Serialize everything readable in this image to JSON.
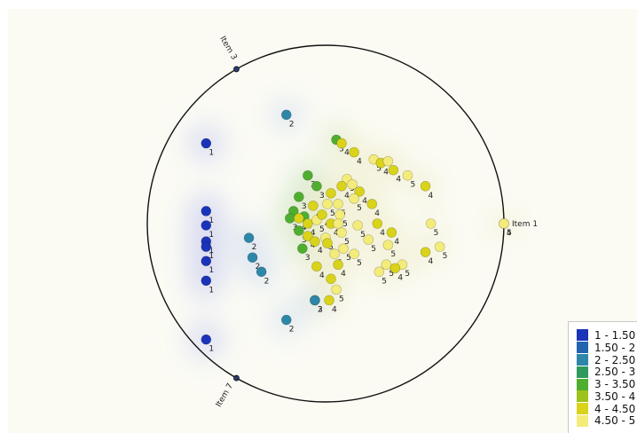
{
  "chart_data": {
    "type": "scatter",
    "title": "",
    "anchors": [
      {
        "name": "Item 1",
        "angle_deg": 0
      },
      {
        "name": "Item 3",
        "angle_deg": 120
      },
      {
        "name": "Item 7",
        "angle_deg": 240
      }
    ],
    "legend": {
      "placement": "bottom-right",
      "bins": [
        {
          "label": "1 - 1.50",
          "color": "#1a33b8"
        },
        {
          "label": "1.50 - 2",
          "color": "#2363b0"
        },
        {
          "label": "2 - 2.50",
          "color": "#2e86a8"
        },
        {
          "label": "2.50 - 3",
          "color": "#2f9a5c"
        },
        {
          "label": "3 - 3.50",
          "color": "#4fae2f"
        },
        {
          "label": "3.50 - 4",
          "color": "#9fc21a"
        },
        {
          "label": "4 - 4.50",
          "color": "#d9d31a"
        },
        {
          "label": "4.50 - 5",
          "color": "#f4ec7a"
        }
      ]
    },
    "points": [
      {
        "x": -0.67,
        "y": 0.45,
        "label": "1"
      },
      {
        "x": -0.67,
        "y": 0.07,
        "label": "1"
      },
      {
        "x": -0.67,
        "y": -0.01,
        "label": "1"
      },
      {
        "x": -0.67,
        "y": -0.1,
        "label": "1"
      },
      {
        "x": -0.67,
        "y": -0.13,
        "label": "1"
      },
      {
        "x": -0.67,
        "y": -0.21,
        "label": "1"
      },
      {
        "x": -0.67,
        "y": -0.32,
        "label": "1"
      },
      {
        "x": -0.67,
        "y": -0.65,
        "label": "1"
      },
      {
        "x": -0.22,
        "y": 0.61,
        "label": "2"
      },
      {
        "x": -0.43,
        "y": -0.08,
        "label": "2"
      },
      {
        "x": -0.41,
        "y": -0.19,
        "label": "2"
      },
      {
        "x": -0.36,
        "y": -0.27,
        "label": "2"
      },
      {
        "x": -0.22,
        "y": -0.54,
        "label": "2"
      },
      {
        "x": -0.06,
        "y": -0.43,
        "label": "3"
      },
      {
        "x": -0.06,
        "y": -0.43,
        "label": "2"
      },
      {
        "x": -0.1,
        "y": 0.27,
        "label": "3"
      },
      {
        "x": -0.05,
        "y": 0.21,
        "label": "3"
      },
      {
        "x": -0.15,
        "y": 0.15,
        "label": "3"
      },
      {
        "x": -0.07,
        "y": 0.1,
        "label": "4"
      },
      {
        "x": -0.18,
        "y": 0.07,
        "label": "3"
      },
      {
        "x": -0.12,
        "y": 0.04,
        "label": "3"
      },
      {
        "x": -0.2,
        "y": 0.03,
        "label": "3"
      },
      {
        "x": -0.15,
        "y": 0.03,
        "label": "4"
      },
      {
        "x": -0.1,
        "y": 0.0,
        "label": "4"
      },
      {
        "x": -0.05,
        "y": 0.02,
        "label": "5"
      },
      {
        "x": -0.15,
        "y": -0.04,
        "label": "3"
      },
      {
        "x": -0.1,
        "y": -0.07,
        "label": "4"
      },
      {
        "x": -0.06,
        "y": -0.1,
        "label": "4"
      },
      {
        "x": -0.13,
        "y": -0.14,
        "label": "3"
      },
      {
        "x": 0.06,
        "y": 0.47,
        "label": "3"
      },
      {
        "x": 0.09,
        "y": 0.45,
        "label": "4"
      },
      {
        "x": 0.16,
        "y": 0.4,
        "label": "4"
      },
      {
        "x": 0.27,
        "y": 0.36,
        "label": "5"
      },
      {
        "x": 0.31,
        "y": 0.34,
        "label": "4"
      },
      {
        "x": 0.12,
        "y": 0.25,
        "label": "5"
      },
      {
        "x": 0.09,
        "y": 0.21,
        "label": "4"
      },
      {
        "x": 0.15,
        "y": 0.22,
        "label": "5"
      },
      {
        "x": 0.19,
        "y": 0.18,
        "label": "4"
      },
      {
        "x": 0.03,
        "y": 0.17,
        "label": "4"
      },
      {
        "x": 0.01,
        "y": 0.11,
        "label": "5"
      },
      {
        "x": 0.07,
        "y": 0.11,
        "label": "5"
      },
      {
        "x": 0.16,
        "y": 0.14,
        "label": "5"
      },
      {
        "x": 0.26,
        "y": 0.11,
        "label": "4"
      },
      {
        "x": -0.02,
        "y": 0.05,
        "label": "4"
      },
      {
        "x": 0.08,
        "y": 0.05,
        "label": "5"
      },
      {
        "x": 0.03,
        "y": 0.0,
        "label": "4"
      },
      {
        "x": 0.07,
        "y": 0.0,
        "label": "5"
      },
      {
        "x": 0.18,
        "y": -0.01,
        "label": "5"
      },
      {
        "x": 0.29,
        "y": 0.0,
        "label": "4"
      },
      {
        "x": 0.09,
        "y": -0.05,
        "label": "5"
      },
      {
        "x": 0.0,
        "y": -0.08,
        "label": "5"
      },
      {
        "x": 0.01,
        "y": -0.11,
        "label": "4"
      },
      {
        "x": 0.24,
        "y": -0.09,
        "label": "5"
      },
      {
        "x": 0.1,
        "y": -0.14,
        "label": "5"
      },
      {
        "x": 0.16,
        "y": -0.17,
        "label": "5"
      },
      {
        "x": 0.05,
        "y": -0.17,
        "label": "5"
      },
      {
        "x": 0.07,
        "y": -0.23,
        "label": "4"
      },
      {
        "x": 0.35,
        "y": 0.35,
        "label": "5"
      },
      {
        "x": 0.38,
        "y": 0.3,
        "label": "4"
      },
      {
        "x": 0.46,
        "y": 0.27,
        "label": "5"
      },
      {
        "x": 0.56,
        "y": 0.21,
        "label": "4"
      },
      {
        "x": 0.59,
        "y": 0.0,
        "label": "5"
      },
      {
        "x": 0.56,
        "y": -0.16,
        "label": "4"
      },
      {
        "x": 0.64,
        "y": -0.13,
        "label": "5"
      },
      {
        "x": 0.35,
        "y": -0.12,
        "label": "5"
      },
      {
        "x": 0.34,
        "y": -0.23,
        "label": "5"
      },
      {
        "x": 0.3,
        "y": -0.27,
        "label": "5"
      },
      {
        "x": 0.43,
        "y": -0.23,
        "label": "5"
      },
      {
        "x": 0.39,
        "y": -0.25,
        "label": "4"
      },
      {
        "x": -0.05,
        "y": -0.24,
        "label": "4"
      },
      {
        "x": 0.03,
        "y": -0.31,
        "label": "4"
      },
      {
        "x": 0.02,
        "y": -0.43,
        "label": "4"
      },
      {
        "x": 0.06,
        "y": -0.37,
        "label": "5"
      },
      {
        "x": 0.37,
        "y": -0.05,
        "label": "4"
      },
      {
        "x": 1.0,
        "y": 0.0,
        "label": "4"
      },
      {
        "x": 1.0,
        "y": 0.0,
        "label": "5"
      }
    ]
  }
}
